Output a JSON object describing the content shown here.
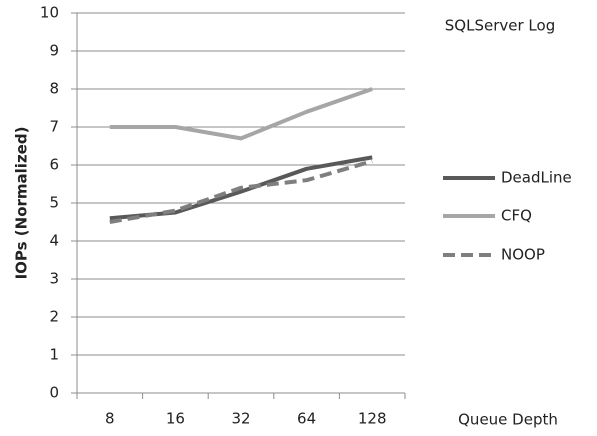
{
  "chart_data": {
    "type": "line",
    "title": "SQLServer Log",
    "y_label": "IOPs (Normalized)",
    "x_label": "Queue Depth",
    "categories": [
      "8",
      "16",
      "32",
      "64",
      "128"
    ],
    "series": [
      {
        "name": "DeadLine",
        "color": "#595959",
        "dashed": false,
        "values": [
          4.6,
          4.75,
          5.3,
          5.9,
          6.2
        ]
      },
      {
        "name": "CFQ",
        "color": "#a6a6a6",
        "dashed": false,
        "values": [
          7,
          7,
          6.7,
          7.4,
          8
        ]
      },
      {
        "name": "NOOP",
        "color": "#7f7f7f",
        "dashed": true,
        "values": [
          4.5,
          4.8,
          5.4,
          5.6,
          6.1
        ]
      }
    ],
    "ylim": [
      0,
      10
    ],
    "yticks": [
      0,
      1,
      2,
      3,
      4,
      5,
      6,
      7,
      8,
      9,
      10
    ],
    "grid": true
  }
}
